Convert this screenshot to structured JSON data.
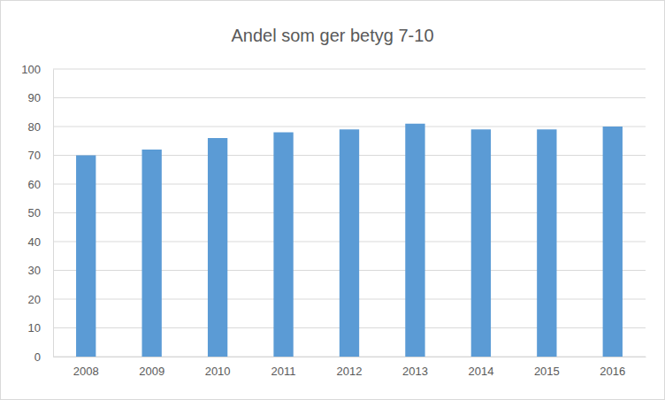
{
  "chart_data": {
    "type": "bar",
    "title": "Andel som ger betyg 7-10",
    "categories": [
      "2008",
      "2009",
      "2010",
      "2011",
      "2012",
      "2013",
      "2014",
      "2015",
      "2016"
    ],
    "values": [
      70,
      72,
      76,
      78,
      79,
      81,
      79,
      79,
      80
    ],
    "color": "#5b9bd5",
    "ylim": [
      0,
      100
    ],
    "yticks": [
      0,
      10,
      20,
      30,
      40,
      50,
      60,
      70,
      80,
      90,
      100
    ],
    "grid": true
  }
}
